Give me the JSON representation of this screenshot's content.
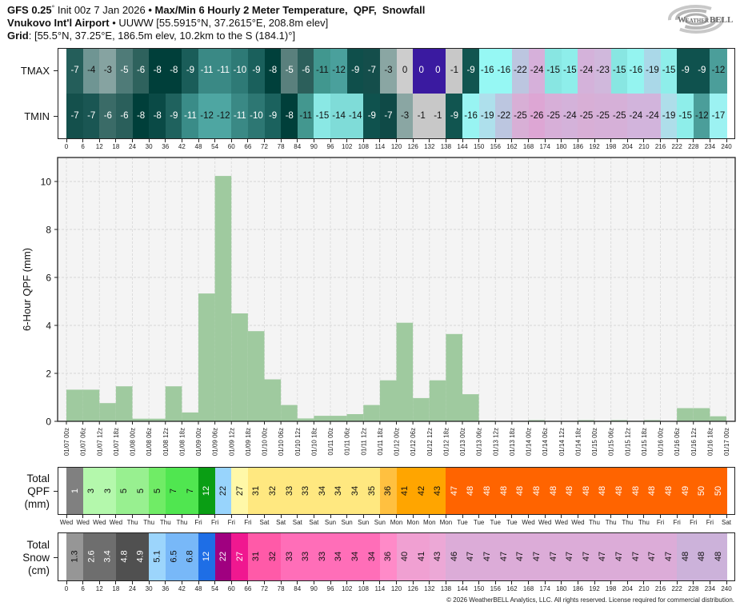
{
  "header": {
    "model": "GFS 0.25",
    "model_degree": "°",
    "init": "Init 00z 7 Jan 2026",
    "separator": "•",
    "title": "Max/Min 6 Hourly 2 Meter Temperature,  QPF,  Snowfall",
    "station_name": "Vnukovo Int'l Airport",
    "station_details": "UUWW [55.5915°N, 37.2615°E, 208.8m elev]",
    "grid_label": "Grid",
    "grid_details": ": [55.5°N, 37.25°E, 186.5m elev, 10.2km to the S (184.1)°]"
  },
  "logo": {
    "text_weather": "Weather",
    "text_bell": "BELL",
    "color": "#8a8a8a"
  },
  "temperature": {
    "tmax": {
      "label": "TMAX",
      "values": [
        "-7",
        "-4",
        "-3",
        "-5",
        "-6",
        "-8",
        "-8",
        "-9",
        "-11",
        "-11",
        "-10",
        "-9",
        "-8",
        "-5",
        "-6",
        "-11",
        "-12",
        "-9",
        "-7",
        "-3",
        "0",
        "0",
        "0",
        "-1",
        "-9",
        "-16",
        "-16",
        "-22",
        "-24",
        "-15",
        "-15",
        "-24",
        "-23",
        "-15",
        "-16",
        "-19",
        "-15",
        "-9",
        "-9",
        "-12"
      ],
      "colors": [
        "#245e5a",
        "#6f9593",
        "#86a3a1",
        "#4f7b78",
        "#2e625d",
        "#003f3a",
        "#003f3a",
        "#1a5d59",
        "#3a8985",
        "#3a8985",
        "#2e7a76",
        "#1a605c",
        "#00403b",
        "#5a807d",
        "#2c5f5b",
        "#41978f",
        "#4aa09c",
        "#0f4f4b",
        "#144e4b",
        "#8aa6a3",
        "#cdcdcd",
        "#3a1aa0",
        "#3a1aa0",
        "#c8c8c8",
        "#115550",
        "#96f8f4",
        "#96f8f4",
        "#bcc6e0",
        "#d6b0da",
        "#88e6e2",
        "#8eeeea",
        "#d4b2da",
        "#d0b8dc",
        "#88e6e2",
        "#94f4f0",
        "#aad8e8",
        "#8eeeea",
        "#0f524e",
        "#0f524e",
        "#4b9e9a"
      ]
    },
    "tmin": {
      "label": "TMIN",
      "values": [
        "-7",
        "-7",
        "-6",
        "-6",
        "-8",
        "-8",
        "-9",
        "-11",
        "-12",
        "-12",
        "-11",
        "-10",
        "-9",
        "-8",
        "-11",
        "-15",
        "-14",
        "-14",
        "-9",
        "-7",
        "-3",
        "-1",
        "-1",
        "-9",
        "-16",
        "-19",
        "-22",
        "-25",
        "-26",
        "-25",
        "-24",
        "-25",
        "-25",
        "-25",
        "-24",
        "-24",
        "-19",
        "-15",
        "-12",
        "-17"
      ],
      "colors": [
        "#14504c",
        "#1a5653",
        "#3a6b67",
        "#2a5f5b",
        "#003f3a",
        "#0a4a46",
        "#1f625e",
        "#3a8c88",
        "#4ea6a2",
        "#4ea6a2",
        "#3a8985",
        "#2d7773",
        "#1b625e",
        "#003f3a",
        "#43978f",
        "#8ae8e4",
        "#7fdcd8",
        "#7fdcd8",
        "#0f524e",
        "#0f4a47",
        "#8aa6a3",
        "#c8c8c8",
        "#c8c8c8",
        "#115550",
        "#98f4f2",
        "#aee0ec",
        "#bcc6e0",
        "#d8afd6",
        "#dda6d4",
        "#d7afd8",
        "#d4b2da",
        "#d8afd6",
        "#d6b0d8",
        "#d6b0d8",
        "#d2b4dc",
        "#d2b4dc",
        "#aedeea",
        "#8eeeea",
        "#4b9e9a",
        "#9cf2f2"
      ]
    }
  },
  "hour_ticks": [
    "0",
    "6",
    "12",
    "18",
    "24",
    "30",
    "36",
    "42",
    "48",
    "54",
    "60",
    "66",
    "72",
    "78",
    "84",
    "90",
    "96",
    "102",
    "108",
    "114",
    "120",
    "126",
    "132",
    "138",
    "144",
    "150",
    "156",
    "162",
    "168",
    "174",
    "180",
    "186",
    "192",
    "198",
    "204",
    "210",
    "216",
    "222",
    "228",
    "234",
    "240"
  ],
  "chart_data": {
    "type": "bar",
    "title": "",
    "xlabel": "",
    "ylabel": "6-Hour QPF (mm)",
    "ylim": [
      0,
      11
    ],
    "yticks": [
      0,
      2,
      4,
      6,
      8,
      10
    ],
    "ytick_labels": [
      "0",
      "2",
      "4",
      "6",
      "8",
      "10"
    ],
    "grid": true,
    "bar_color": "#9fca9f",
    "x_tick_labels": [
      "01/07 00z",
      "01/07 06z",
      "01/07 12z",
      "01/07 18z",
      "01/08 00z",
      "01/08 06z",
      "01/08 12z",
      "01/08 18z",
      "01/09 00z",
      "01/09 06z",
      "01/09 12z",
      "01/09 18z",
      "01/10 00z",
      "01/10 06z",
      "01/10 12z",
      "01/10 18z",
      "01/11 00z",
      "01/11 06z",
      "01/11 12z",
      "01/11 18z",
      "01/12 00z",
      "01/12 06z",
      "01/12 12z",
      "01/12 18z",
      "01/13 00z",
      "01/13 06z",
      "01/13 12z",
      "01/13 18z",
      "01/14 00z",
      "01/14 06z",
      "01/14 12z",
      "01/14 18z",
      "01/15 00z",
      "01/15 06z",
      "01/15 12z",
      "01/15 18z",
      "01/16 00z",
      "01/16 06z",
      "01/16 12z",
      "01/16 18z",
      "01/17 00z"
    ],
    "values": [
      1.32,
      1.32,
      0.76,
      1.46,
      0.11,
      0.11,
      1.46,
      0.37,
      5.33,
      10.23,
      4.5,
      3.76,
      1.75,
      0.68,
      0.12,
      0.23,
      0.23,
      0.3,
      0.68,
      1.71,
      4.11,
      0.97,
      1.71,
      3.64,
      1.13,
      0.03,
      0,
      0,
      0.05,
      0.02,
      0,
      0.05,
      0.02,
      0.05,
      0.02,
      0.05,
      0,
      0.55,
      0.55,
      0.21
    ]
  },
  "total_qpf": {
    "label_lines": [
      "Total",
      "QPF",
      "(mm)"
    ],
    "values": [
      "1",
      "3",
      "3",
      "5",
      "5",
      "5",
      "7",
      "7",
      "12",
      "22",
      "27",
      "31",
      "32",
      "33",
      "33",
      "34",
      "34",
      "34",
      "35",
      "36",
      "41",
      "42",
      "43",
      "47",
      "48",
      "48",
      "48",
      "48",
      "48",
      "48",
      "48",
      "48",
      "48",
      "48",
      "48",
      "48",
      "48",
      "49",
      "50",
      "50"
    ],
    "colors": [
      "#808080",
      "#b4f8ac",
      "#b4f8ac",
      "#98f090",
      "#98f090",
      "#70ec66",
      "#50e650",
      "#50e650",
      "#0a9e14",
      "#98d4fc",
      "#fff8a8",
      "#ffe880",
      "#ffe880",
      "#ffe880",
      "#ffe880",
      "#ffe880",
      "#ffe880",
      "#ffe880",
      "#ffe880",
      "#ffc040",
      "#ffa500",
      "#ffa500",
      "#ffa500",
      "#ff6400",
      "#ff6400",
      "#ff6400",
      "#ff6400",
      "#ff6400",
      "#ff6400",
      "#ff6400",
      "#ff6400",
      "#ff6400",
      "#ff6400",
      "#ff6400",
      "#ff6400",
      "#ff6400",
      "#ff6400",
      "#ff6400",
      "#ff6400",
      "#ff6400"
    ]
  },
  "day_labels": [
    "Wed",
    "Wed",
    "Wed",
    "Wed",
    "Thu",
    "Thu",
    "Thu",
    "Thu",
    "Fri",
    "Fri",
    "Fri",
    "Fri",
    "Sat",
    "Sat",
    "Sat",
    "Sat",
    "Sun",
    "Sun",
    "Sun",
    "Sun",
    "Mon",
    "Mon",
    "Mon",
    "Mon",
    "Tue",
    "Tue",
    "Tue",
    "Tue",
    "Wed",
    "Wed",
    "Wed",
    "Wed",
    "Thu",
    "Thu",
    "Thu",
    "Thu",
    "Fri",
    "Fri",
    "Fri",
    "Fri",
    "Sat"
  ],
  "total_snow": {
    "label_lines": [
      "Total",
      "Snow",
      "(cm)"
    ],
    "values": [
      "1.3",
      "2.6",
      "3.4",
      "4.8",
      "4.9",
      "5.1",
      "6.5",
      "6.8",
      "12",
      "22",
      "27",
      "31",
      "32",
      "33",
      "33",
      "33",
      "34",
      "34",
      "34",
      "36",
      "40",
      "41",
      "43",
      "46",
      "47",
      "47",
      "47",
      "47",
      "47",
      "47",
      "47",
      "47",
      "47",
      "47",
      "47",
      "47",
      "47",
      "48",
      "48",
      "48"
    ],
    "colors": [
      "#969696",
      "#6e6e6e",
      "#6e6e6e",
      "#505050",
      "#505050",
      "#9cd5fc",
      "#78b8f8",
      "#78b8f8",
      "#1e6ee6",
      "#a00080",
      "#f01890",
      "#ff5aa8",
      "#ff5aa8",
      "#ff6eb8",
      "#ff6eb8",
      "#ff6eb8",
      "#ff6eb8",
      "#ff6eb8",
      "#ff6eb8",
      "#ff8ac8",
      "#f0a0d2",
      "#f0a0d2",
      "#eca8d6",
      "#dcacd8",
      "#dcacd8",
      "#dcacd8",
      "#dcacd8",
      "#dcacd8",
      "#dcacd8",
      "#dcacd8",
      "#dcacd8",
      "#dcacd8",
      "#dcacd8",
      "#dcacd8",
      "#dcacd8",
      "#dcacd8",
      "#dcacd8",
      "#ccb2da",
      "#ccb2da",
      "#ccb2da"
    ]
  },
  "copyright": "© 2026 WeatherBELL Analytics, LLC. All rights reserved. License required for commercial distribution."
}
